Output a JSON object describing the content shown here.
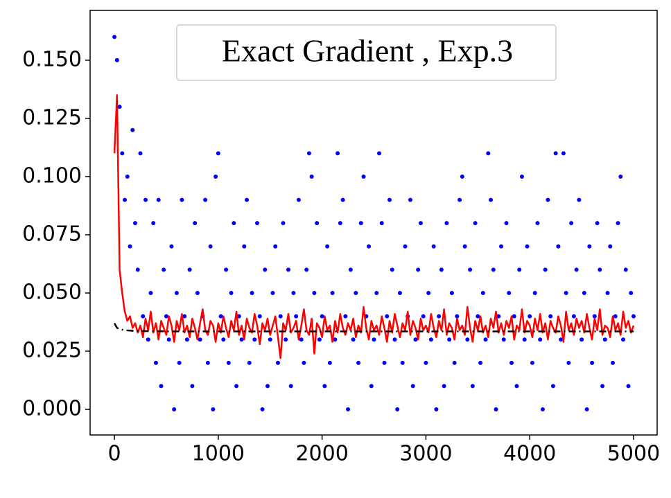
{
  "chart_data": {
    "type": "scatter",
    "title": "Exact Gradient , Exp.3",
    "xlim": [
      -234,
      5227
    ],
    "ylim": [
      -0.011,
      0.1714
    ],
    "xticks": [
      0,
      1000,
      2000,
      3000,
      4000,
      5000
    ],
    "yticks": [
      {
        "value": 0,
        "label": "0.000"
      },
      {
        "value": 0.025,
        "label": "0.025"
      },
      {
        "value": 0.05,
        "label": "0.050"
      },
      {
        "value": 0.075,
        "label": "0.075"
      },
      {
        "value": 0.1,
        "label": "0.100"
      },
      {
        "value": 0.125,
        "label": "0.125"
      },
      {
        "value": 0.15,
        "label": "0.150"
      }
    ],
    "grid": false,
    "x": [
      0,
      25,
      50,
      75,
      100,
      125,
      150,
      175,
      200,
      225,
      250,
      275,
      300,
      325,
      350,
      375,
      400,
      425,
      450,
      475,
      500,
      525,
      550,
      575,
      600,
      625,
      650,
      675,
      700,
      725,
      750,
      775,
      800,
      825,
      850,
      875,
      900,
      925,
      950,
      975,
      1000,
      1025,
      1050,
      1075,
      1100,
      1125,
      1150,
      1175,
      1200,
      1225,
      1250,
      1275,
      1300,
      1325,
      1350,
      1375,
      1400,
      1425,
      1450,
      1475,
      1500,
      1525,
      1550,
      1575,
      1600,
      1625,
      1650,
      1675,
      1700,
      1725,
      1750,
      1775,
      1800,
      1825,
      1850,
      1875,
      1900,
      1925,
      1950,
      1975,
      2000,
      2025,
      2050,
      2075,
      2100,
      2125,
      2150,
      2175,
      2200,
      2225,
      2250,
      2275,
      2300,
      2325,
      2350,
      2375,
      2400,
      2425,
      2450,
      2475,
      2500,
      2525,
      2550,
      2575,
      2600,
      2625,
      2650,
      2675,
      2700,
      2725,
      2750,
      2775,
      2800,
      2825,
      2850,
      2875,
      2900,
      2925,
      2950,
      2975,
      3000,
      3025,
      3050,
      3075,
      3100,
      3125,
      3150,
      3175,
      3200,
      3225,
      3250,
      3275,
      3300,
      3325,
      3350,
      3375,
      3400,
      3425,
      3450,
      3475,
      3500,
      3525,
      3550,
      3575,
      3600,
      3625,
      3650,
      3675,
      3700,
      3725,
      3750,
      3775,
      3800,
      3825,
      3850,
      3875,
      3900,
      3925,
      3950,
      3975,
      4000,
      4025,
      4050,
      4075,
      4100,
      4125,
      4150,
      4175,
      4200,
      4225,
      4250,
      4275,
      4300,
      4325,
      4350,
      4375,
      4400,
      4425,
      4450,
      4475,
      4500,
      4525,
      4550,
      4575,
      4600,
      4625,
      4650,
      4675,
      4700,
      4725,
      4750,
      4775,
      4800,
      4825,
      4850,
      4875,
      4900,
      4925,
      4950,
      4975,
      5000
    ],
    "series": [
      {
        "mode": "markers",
        "color": "#0000ff",
        "values": [
          0.16,
          0.15,
          0.13,
          0.11,
          0.09,
          0.1,
          0.07,
          0.12,
          0.08,
          0.06,
          0.11,
          0.04,
          0.09,
          0.03,
          0.05,
          0.08,
          0.02,
          0.09,
          0.01,
          0.06,
          0.04,
          0.03,
          0.07,
          0,
          0.05,
          0.02,
          0.09,
          0.04,
          0.03,
          0.06,
          0.01,
          0.08,
          0.05,
          0.03,
          0.04,
          0.09,
          0.02,
          0.07,
          0,
          0.1,
          0.11,
          0.04,
          0.03,
          0.06,
          0.02,
          0.05,
          0.08,
          0.01,
          0.04,
          0.03,
          0.07,
          0.09,
          0.02,
          0.05,
          0.03,
          0.08,
          0.04,
          0,
          0.06,
          0.01,
          0.03,
          0.05,
          0.07,
          0.02,
          0.04,
          0.08,
          0.03,
          0.06,
          0.01,
          0.05,
          0.04,
          0.09,
          0.03,
          0.02,
          0.06,
          0.11,
          0.1,
          0.05,
          0.08,
          0.03,
          0.04,
          0.01,
          0.07,
          0.02,
          0.05,
          0.03,
          0.11,
          0.08,
          0.09,
          0.04,
          0,
          0.06,
          0.03,
          0.05,
          0.02,
          0.08,
          0.1,
          0.04,
          0.07,
          0.01,
          0.03,
          0.05,
          0.11,
          0.08,
          0.02,
          0.04,
          0.09,
          0.06,
          0.03,
          0,
          0.05,
          0.02,
          0.07,
          0.04,
          0.09,
          0.01,
          0.03,
          0.06,
          0.08,
          0.04,
          0.02,
          0.05,
          0.03,
          0.07,
          0,
          0.04,
          0.06,
          0.01,
          0.08,
          0.03,
          0.05,
          0.02,
          0.04,
          0.09,
          0.1,
          0.07,
          0.03,
          0.06,
          0.01,
          0.08,
          0.04,
          0.02,
          0.05,
          0.03,
          0.11,
          0.09,
          0.06,
          0,
          0.04,
          0.07,
          0.03,
          0.08,
          0.05,
          0.02,
          0.04,
          0.01,
          0.06,
          0.1,
          0.03,
          0.07,
          0.04,
          0.02,
          0.05,
          0.08,
          0.03,
          0,
          0.06,
          0.09,
          0.04,
          0.01,
          0.11,
          0.07,
          0.03,
          0.11,
          0.05,
          0.02,
          0.08,
          0.04,
          0.06,
          0.09,
          0.03,
          0.05,
          0,
          0.07,
          0.02,
          0.04,
          0.08,
          0.06,
          0.01,
          0.03,
          0.05,
          0.07,
          0.02,
          0.04,
          0.08,
          0.1,
          0.03,
          0.06,
          0.01,
          0.05,
          0.04
        ]
      },
      {
        "mode": "line",
        "color": "#ff0000",
        "linestyle": "-",
        "values": [
          0.11,
          0.135,
          0.06,
          0.05,
          0.042,
          0.038,
          0.04,
          0.035,
          0.037,
          0.033,
          0.036,
          0.031,
          0.039,
          0.034,
          0.042,
          0.033,
          0.037,
          0.03,
          0.038,
          0.035,
          0.032,
          0.04,
          0.036,
          0.029,
          0.038,
          0.034,
          0.041,
          0.033,
          0.036,
          0.031,
          0.039,
          0.035,
          0.03,
          0.037,
          0.043,
          0.034,
          0.032,
          0.038,
          0.036,
          0.029,
          0.037,
          0.033,
          0.04,
          0.035,
          0.031,
          0.038,
          0.034,
          0.042,
          0.032,
          0.036,
          0.03,
          0.039,
          0.035,
          0.033,
          0.041,
          0.036,
          0.028,
          0.037,
          0.034,
          0.039,
          0.032,
          0.036,
          0.04,
          0.031,
          0.022,
          0.037,
          0.034,
          0.041,
          0.033,
          0.035,
          0.038,
          0.03,
          0.036,
          0.043,
          0.034,
          0.032,
          0.039,
          0.024,
          0.037,
          0.035,
          0.031,
          0.04,
          0.034,
          0.036,
          0.029,
          0.038,
          0.033,
          0.041,
          0.035,
          0.032,
          0.037,
          0.034,
          0.039,
          0.031,
          0.036,
          0.033,
          0.044,
          0.035,
          0.03,
          0.038,
          0.034,
          0.036,
          0.032,
          0.04,
          0.035,
          0.029,
          0.038,
          0.033,
          0.041,
          0.036,
          0.031,
          0.037,
          0.034,
          0.042,
          0.032,
          0.038,
          0.035,
          0.03,
          0.039,
          0.034,
          0.036,
          0.033,
          0.041,
          0.035,
          0.031,
          0.038,
          0.034,
          0.043,
          0.032,
          0.037,
          0.035,
          0.03,
          0.039,
          0.034,
          0.036,
          0.032,
          0.044,
          0.035,
          0.029,
          0.038,
          0.034,
          0.04,
          0.033,
          0.036,
          0.031,
          0.039,
          0.035,
          0.042,
          0.033,
          0.037,
          0.032,
          0.038,
          0.035,
          0.04,
          0.03,
          0.036,
          0.034,
          0.043,
          0.033,
          0.038,
          0.036,
          0.031,
          0.039,
          0.034,
          0.041,
          0.033,
          0.037,
          0.03,
          0.038,
          0.035,
          0.033,
          0.04,
          0.036,
          0.029,
          0.042,
          0.034,
          0.037,
          0.032,
          0.039,
          0.035,
          0.038,
          0.033,
          0.041,
          0.035,
          0.03,
          0.039,
          0.034,
          0.043,
          0.032,
          0.036,
          0.035,
          0.031,
          0.04,
          0.034,
          0.037,
          0.032,
          0.042,
          0.035,
          0.038,
          0.033,
          0.036
        ]
      },
      {
        "mode": "line",
        "color": "#000000",
        "linestyle": "-.",
        "x": [
          0,
          25,
          50,
          100,
          200,
          500,
          5000
        ],
        "values": [
          0.037,
          0.035,
          0.0345,
          0.034,
          0.0337,
          0.0335,
          0.0335
        ]
      }
    ]
  }
}
